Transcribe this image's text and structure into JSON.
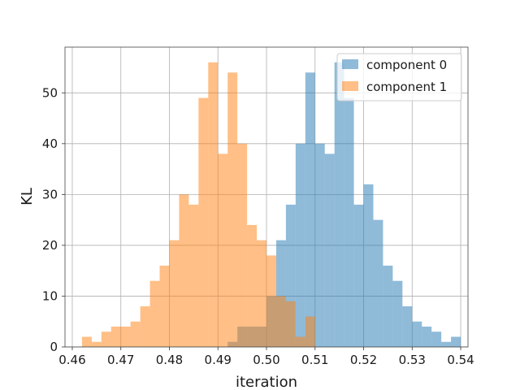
{
  "chart_data": {
    "type": "bar",
    "title": "",
    "xlabel": "iteration",
    "ylabel": "KL",
    "xlim": [
      0.4585,
      0.5415
    ],
    "ylim": [
      0,
      59
    ],
    "xticks": [
      0.46,
      0.47,
      0.48,
      0.49,
      0.5,
      0.51,
      0.52,
      0.53,
      0.54
    ],
    "xtick_labels": [
      "0.46",
      "0.47",
      "0.48",
      "0.49",
      "0.50",
      "0.51",
      "0.52",
      "0.53",
      "0.54"
    ],
    "yticks": [
      0,
      10,
      20,
      30,
      40,
      50
    ],
    "ytick_labels": [
      "0",
      "10",
      "20",
      "30",
      "40",
      "50"
    ],
    "grid": true,
    "legend_position": "top-right",
    "bar_alpha": 0.5,
    "series": [
      {
        "name": "component 0",
        "color": "#1f77b4",
        "bins": [
          0.492,
          0.494,
          0.496,
          0.498,
          0.5,
          0.502,
          0.504,
          0.506,
          0.508,
          0.51,
          0.512,
          0.514,
          0.516,
          0.518,
          0.52,
          0.522,
          0.524,
          0.526,
          0.528,
          0.53,
          0.532,
          0.534,
          0.536,
          0.538
        ],
        "values": [
          1,
          4,
          4,
          4,
          10,
          21,
          28,
          40,
          54,
          40,
          38,
          56,
          49,
          28,
          32,
          25,
          16,
          13,
          8,
          5,
          4,
          3,
          1,
          2
        ]
      },
      {
        "name": "component 1",
        "color": "#ff7f0e",
        "bins": [
          0.462,
          0.464,
          0.466,
          0.468,
          0.47,
          0.472,
          0.474,
          0.476,
          0.478,
          0.48,
          0.482,
          0.484,
          0.486,
          0.488,
          0.49,
          0.492,
          0.494,
          0.496,
          0.498,
          0.5,
          0.502,
          0.504,
          0.506,
          0.508
        ],
        "values": [
          2,
          1,
          3,
          4,
          4,
          5,
          8,
          13,
          16,
          21,
          30,
          28,
          49,
          56,
          38,
          54,
          40,
          24,
          21,
          18,
          10,
          9,
          2,
          6
        ]
      }
    ]
  }
}
